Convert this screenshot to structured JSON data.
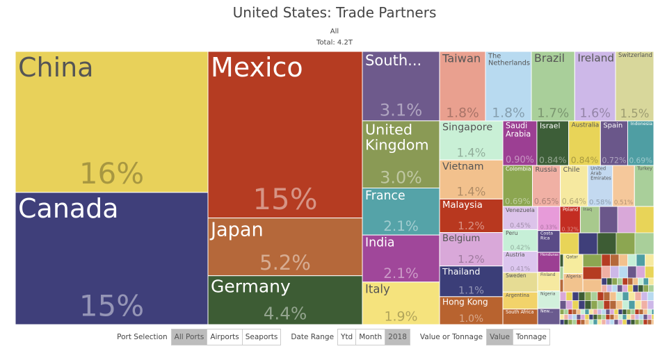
{
  "title": "United States: Trade Partners",
  "subtitle": "All",
  "total": "Total: 4.2T",
  "chart_data": {
    "type": "treemap",
    "categories": [
      "China",
      "Canada",
      "Mexico",
      "Japan",
      "Germany",
      "South...",
      "United Kingdom",
      "France",
      "India",
      "Italy",
      "Taiwan",
      "The Netherlands",
      "Brazil",
      "Ireland",
      "Switzerland",
      "Singapore",
      "Vietnam",
      "Malaysia",
      "Belgium",
      "Thailand",
      "Hong Kong",
      "Saudi Arabia",
      "Israel",
      "Australia",
      "Spain",
      "Indonesia",
      "Colombia",
      "Russia",
      "Chile",
      "United Arab Emirates",
      null,
      "Turkey",
      "Venezuela",
      "Peru",
      "Austria",
      "Sweden",
      "Argentina",
      "South Africa",
      null,
      "Costa Rica",
      "Honduras",
      "Finland",
      "Nigeria",
      "New...",
      "Poland",
      "Iraq",
      "Qatar",
      "Algeria"
    ],
    "values": [
      16,
      15,
      15,
      5.2,
      4.4,
      3.1,
      3.0,
      2.1,
      2.1,
      1.9,
      1.8,
      1.8,
      1.7,
      1.6,
      1.5,
      1.4,
      1.4,
      1.2,
      1.2,
      1.1,
      1.0,
      0.9,
      0.84,
      0.84,
      0.72,
      0.69,
      0.69,
      0.65,
      0.64,
      0.58,
      0.51,
      0.45,
      0.45,
      0.42,
      0.41,
      0.38,
      0.33,
      0.3,
      0.33,
      0.3,
      0.27,
      0.26,
      0.24,
      0.22,
      0.32,
      0.3,
      0.2,
      0.19
    ],
    "value_labels": [
      "16%",
      "15%",
      "15%",
      "5.2%",
      "4.4%",
      "3.1%",
      "3.0%",
      "2.1%",
      "2.1%",
      "1.9%",
      "1.8%",
      "1.8%",
      "1.7%",
      "1.6%",
      "1.5%",
      "1.4%",
      "1.4%",
      "1.2%",
      "1.2%",
      "1.1%",
      "1.0%",
      "0.90%",
      "0.84%",
      "0.84%",
      "0.72%",
      "0.69%",
      "0.69%",
      "0.65%",
      "0.64%",
      "0.58%",
      "0.51%",
      null,
      "0.45%",
      "0.42%",
      "0.41%",
      null,
      null,
      null,
      "0.33%",
      null,
      null,
      null,
      null,
      null,
      "0.32%",
      null,
      null,
      null
    ],
    "colors": [
      "#e8d15a",
      "#3f3f7a",
      "#b53c22",
      "#b5683a",
      "#3d5c34",
      "#6e5a8c",
      "#8a9a55",
      "#55a3a8",
      "#a0479a",
      "#f5e37d",
      "#e9a08f",
      "#b8daf0",
      "#a9cf9a",
      "#cdb8e8",
      "#d8d79b",
      "#c9f0d6",
      "#f2c18d",
      "#b8381f",
      "#d9a8d9",
      "#3b3e78",
      "#b8632f",
      "#9c3f93",
      "#3d5e38",
      "#e8d458",
      "#6a578a",
      "#4f9ea3",
      "#8ca651",
      "#f0b0a4",
      "#f6e9a0",
      "#c3d9f0",
      "#f5c89b",
      "#a9cf9a",
      "#dcc3ea",
      "#c6efd7",
      "#dcc6ee",
      "#e6dc94",
      "#f2d36a",
      "#b8632f",
      "#e79bd9",
      "#5a4b87",
      "#9c3f93",
      "#f6e9a0",
      "#d2f0dc",
      "#6a5b8f",
      "#c32d22",
      "#a8c98d",
      "#f6ec9e",
      "#f2c38e"
    ]
  },
  "controls": [
    {
      "label": "Port Selection",
      "options": [
        "All Ports",
        "Airports",
        "Seaports"
      ]
    },
    {
      "label": "Date Range",
      "options": [
        "Ytd",
        "Month",
        "2018"
      ]
    },
    {
      "label": "Value or Tonnage",
      "options": [
        "Value",
        "Tonnage"
      ]
    }
  ]
}
